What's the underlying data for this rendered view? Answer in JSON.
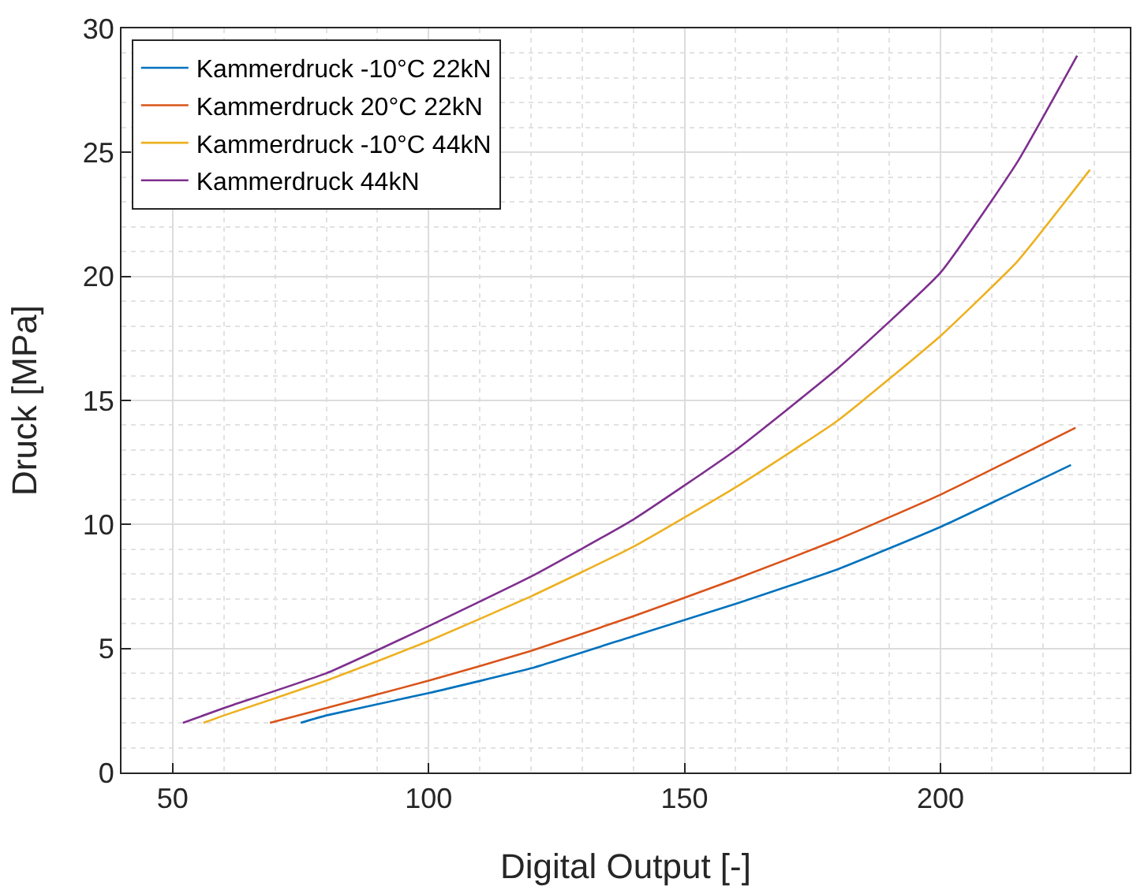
{
  "chart_data": {
    "type": "line",
    "xlabel": "Digital Output [-]",
    "ylabel": "Druck [MPa]",
    "xlim": [
      40,
      237
    ],
    "xticks": [
      50,
      100,
      150,
      200
    ],
    "ylim": [
      0,
      30
    ],
    "yticks": [
      0,
      5,
      10,
      15,
      20,
      25,
      30
    ],
    "grid": true,
    "legend": "top left",
    "marker": "none",
    "line_style": "solid",
    "series": [
      {
        "name": "Kammerdruck -10°C 22kN",
        "color": "#0072bd",
        "x": [
          75,
          80,
          100,
          120,
          140,
          160,
          180,
          200,
          225.5
        ],
        "values": [
          2,
          2.3,
          3.2,
          4.2,
          5.5,
          6.8,
          8.2,
          9.9,
          12.4
        ]
      },
      {
        "name": "Kammerdruck 20°C 22kN",
        "color": "#d95319",
        "x": [
          69,
          80,
          100,
          120,
          140,
          160,
          180,
          200,
          226.4
        ],
        "values": [
          2,
          2.6,
          3.7,
          4.9,
          6.3,
          7.8,
          9.4,
          11.2,
          13.9
        ]
      },
      {
        "name": "Kammerdruck -10°C 44kN",
        "color": "#edb120",
        "x": [
          56,
          60,
          80,
          100,
          120,
          140,
          160,
          180,
          200,
          215,
          229.2
        ],
        "values": [
          2,
          2.3,
          3.7,
          5.3,
          7.1,
          9.1,
          11.5,
          14.2,
          17.6,
          20.6,
          24.3
        ]
      },
      {
        "name": "Kammerdruck 44kN",
        "color": "#7e2f8e",
        "x": [
          52,
          60,
          80,
          100,
          120,
          140,
          160,
          180,
          200,
          215,
          226.7
        ],
        "values": [
          2,
          2.6,
          4.0,
          5.9,
          7.9,
          10.2,
          13.0,
          16.3,
          20.15,
          24.6,
          28.9
        ]
      }
    ]
  }
}
